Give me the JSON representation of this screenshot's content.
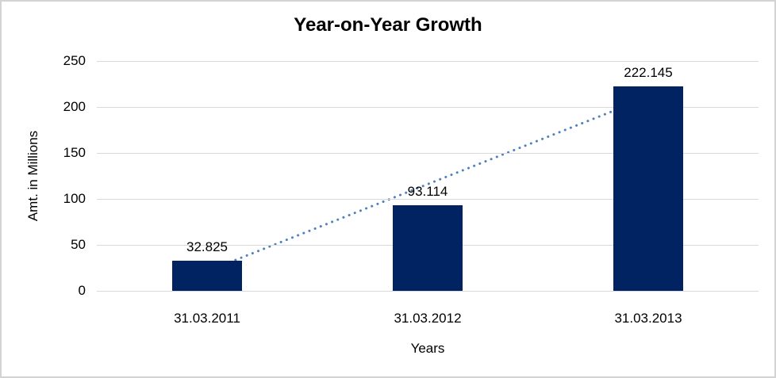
{
  "chart_data": {
    "type": "bar",
    "title": "Year-on-Year Growth",
    "categories": [
      "31.03.2011",
      "31.03.2012",
      "31.03.2013"
    ],
    "values": [
      32.825,
      93.114,
      222.145
    ],
    "data_labels": [
      "32.825",
      "93.114",
      "222.145"
    ],
    "xlabel": "Years",
    "ylabel": "Amt. in Millions",
    "ylim": [
      0,
      250
    ],
    "yticks": [
      0,
      50,
      100,
      150,
      200,
      250
    ],
    "grid": "horizontal",
    "legend": "none",
    "bar_color": "#022362",
    "gridline_color": "#d9d9d9",
    "frame_border_color": "#d3d3d3",
    "trendline": {
      "type": "linear",
      "style": "dotted",
      "color": "#4f81bd",
      "from_category": "31.03.2011",
      "to_category": "31.03.2013"
    }
  }
}
